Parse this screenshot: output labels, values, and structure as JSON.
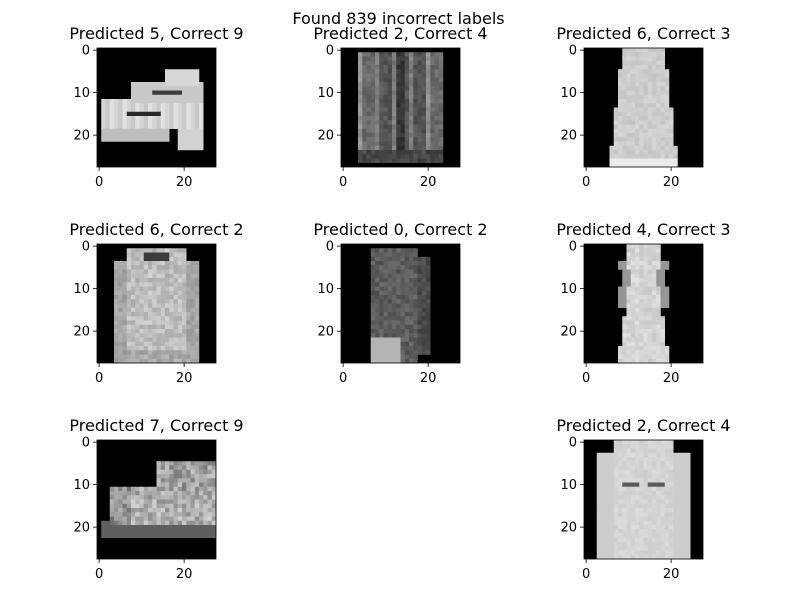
{
  "figure": {
    "title": "Found 839 incorrect labels"
  },
  "chart_data": [
    {
      "type": "heatmap",
      "title": "Predicted 5, Correct 9",
      "predicted": 5,
      "correct": 9,
      "depiction": "sandal",
      "x_ticks": [
        0,
        20
      ],
      "y_ticks": [
        0,
        10,
        20
      ],
      "xlim": [
        -0.5,
        27.5
      ],
      "ylim": [
        27.5,
        -0.5
      ],
      "colormap": "gray"
    },
    {
      "type": "heatmap",
      "title": "Predicted 2, Correct 4",
      "predicted": 2,
      "correct": 4,
      "depiction": "coat",
      "x_ticks": [
        0,
        20
      ],
      "y_ticks": [
        0,
        10,
        20
      ],
      "xlim": [
        -0.5,
        27.5
      ],
      "ylim": [
        27.5,
        -0.5
      ],
      "colormap": "gray"
    },
    {
      "type": "heatmap",
      "title": "Predicted 6, Correct 3",
      "predicted": 6,
      "correct": 3,
      "depiction": "dress",
      "x_ticks": [
        0,
        20
      ],
      "y_ticks": [
        0,
        10,
        20
      ],
      "xlim": [
        -0.5,
        27.5
      ],
      "ylim": [
        27.5,
        -0.5
      ],
      "colormap": "gray"
    },
    {
      "type": "heatmap",
      "title": "Predicted 6, Correct 2",
      "predicted": 6,
      "correct": 2,
      "depiction": "pullover",
      "x_ticks": [
        0,
        20
      ],
      "y_ticks": [
        0,
        10,
        20
      ],
      "xlim": [
        -0.5,
        27.5
      ],
      "ylim": [
        27.5,
        -0.5
      ],
      "colormap": "gray"
    },
    {
      "type": "heatmap",
      "title": "Predicted 0, Correct 2",
      "predicted": 0,
      "correct": 2,
      "depiction": "pullover-dark",
      "x_ticks": [
        0,
        20
      ],
      "y_ticks": [
        0,
        10,
        20
      ],
      "xlim": [
        -0.5,
        27.5
      ],
      "ylim": [
        27.5,
        -0.5
      ],
      "colormap": "gray"
    },
    {
      "type": "heatmap",
      "title": "Predicted 4, Correct 3",
      "predicted": 4,
      "correct": 3,
      "depiction": "long-dress",
      "x_ticks": [
        0,
        20
      ],
      "y_ticks": [
        0,
        10,
        20
      ],
      "xlim": [
        -0.5,
        27.5
      ],
      "ylim": [
        27.5,
        -0.5
      ],
      "colormap": "gray"
    },
    {
      "type": "heatmap",
      "title": "Predicted 7, Correct 9",
      "predicted": 7,
      "correct": 9,
      "depiction": "ankle-boot",
      "x_ticks": [
        0,
        20
      ],
      "y_ticks": [
        0,
        10,
        20
      ],
      "xlim": [
        -0.5,
        27.5
      ],
      "ylim": [
        27.5,
        -0.5
      ],
      "colormap": "gray"
    },
    {
      "type": "heatmap",
      "title": "Predicted 2, Correct 4",
      "predicted": 2,
      "correct": 4,
      "depiction": "coat-light",
      "x_ticks": [
        0,
        20
      ],
      "y_ticks": [
        0,
        10,
        20
      ],
      "xlim": [
        -0.5,
        27.5
      ],
      "ylim": [
        27.5,
        -0.5
      ],
      "colormap": "gray"
    }
  ]
}
